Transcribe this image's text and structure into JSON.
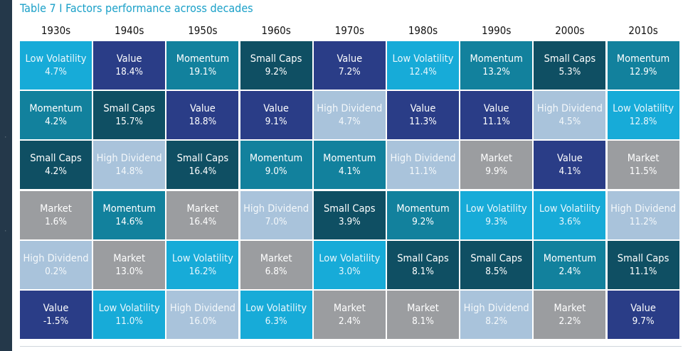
{
  "colors": {
    "Low Volatility": "#17abd8",
    "Value": "#2a3d87",
    "Momentum": "#12819d",
    "Small Caps": "#0f4f63",
    "High Dividend": "#a9c3db",
    "Market": "#9b9da0"
  },
  "text_colors": {
    "Low Volatility": "#e8f6fc",
    "Value": "#ffffff",
    "Momentum": "#ffffff",
    "Small Caps": "#ffffff",
    "High Dividend": "#f4f8fb",
    "Market": "#ffffff"
  },
  "chart_data": {
    "type": "table",
    "title": "Table 7 I Factors performance across decades",
    "columns": [
      {
        "decade": "1930s",
        "cells": [
          {
            "factor": "Low Volatility",
            "value": "4.7%"
          },
          {
            "factor": "Momentum",
            "value": "4.2%"
          },
          {
            "factor": "Small Caps",
            "value": "4.2%"
          },
          {
            "factor": "Market",
            "value": "1.6%"
          },
          {
            "factor": "High Dividend",
            "value": "0.2%"
          },
          {
            "factor": "Value",
            "value": "-1.5%"
          }
        ]
      },
      {
        "decade": "1940s",
        "cells": [
          {
            "factor": "Value",
            "value": "18.4%"
          },
          {
            "factor": "Small Caps",
            "value": "15.7%"
          },
          {
            "factor": "High Dividend",
            "value": "14.8%"
          },
          {
            "factor": "Momentum",
            "value": "14.6%"
          },
          {
            "factor": "Market",
            "value": "13.0%"
          },
          {
            "factor": "Low Volatility",
            "value": "11.0%"
          }
        ]
      },
      {
        "decade": "1950s",
        "cells": [
          {
            "factor": "Momentum",
            "value": "19.1%"
          },
          {
            "factor": "Value",
            "value": "18.8%"
          },
          {
            "factor": "Small Caps",
            "value": "16.4%"
          },
          {
            "factor": "Market",
            "value": "16.4%"
          },
          {
            "factor": "Low Volatility",
            "value": "16.2%"
          },
          {
            "factor": "High Dividend",
            "value": "16.0%"
          }
        ]
      },
      {
        "decade": "1960s",
        "cells": [
          {
            "factor": "Small Caps",
            "value": "9.2%"
          },
          {
            "factor": "Value",
            "value": "9.1%"
          },
          {
            "factor": "Momentum",
            "value": "9.0%"
          },
          {
            "factor": "High Dividend",
            "value": "7.0%"
          },
          {
            "factor": "Market",
            "value": "6.8%"
          },
          {
            "factor": "Low Volatility",
            "value": "6.3%"
          }
        ]
      },
      {
        "decade": "1970s",
        "cells": [
          {
            "factor": "Value",
            "value": "7.2%"
          },
          {
            "factor": "High Dividend",
            "value": "4.7%"
          },
          {
            "factor": "Momentum",
            "value": "4.1%"
          },
          {
            "factor": "Small Caps",
            "value": "3.9%"
          },
          {
            "factor": "Low Volatility",
            "value": "3.0%"
          },
          {
            "factor": "Market",
            "value": "2.4%"
          }
        ]
      },
      {
        "decade": "1980s",
        "cells": [
          {
            "factor": "Low Volatility",
            "value": "12.4%"
          },
          {
            "factor": "Value",
            "value": "11.3%"
          },
          {
            "factor": "High Dividend",
            "value": "11.1%"
          },
          {
            "factor": "Momentum",
            "value": "9.2%"
          },
          {
            "factor": "Small Caps",
            "value": "8.1%"
          },
          {
            "factor": "Market",
            "value": "8.1%"
          }
        ]
      },
      {
        "decade": "1990s",
        "cells": [
          {
            "factor": "Momentum",
            "value": "13.2%"
          },
          {
            "factor": "Value",
            "value": "11.1%"
          },
          {
            "factor": "Market",
            "value": "9.9%"
          },
          {
            "factor": "Low Volatility",
            "value": "9.3%"
          },
          {
            "factor": "Small Caps",
            "value": "8.5%"
          },
          {
            "factor": "High Dividend",
            "value": "8.2%"
          }
        ]
      },
      {
        "decade": "2000s",
        "cells": [
          {
            "factor": "Small Caps",
            "value": "5.3%"
          },
          {
            "factor": "High Dividend",
            "value": "4.5%"
          },
          {
            "factor": "Value",
            "value": "4.1%"
          },
          {
            "factor": "Low Volatility",
            "value": "3.6%"
          },
          {
            "factor": "Momentum",
            "value": "2.4%"
          },
          {
            "factor": "Market",
            "value": "2.2%"
          }
        ]
      },
      {
        "decade": "2010s",
        "cells": [
          {
            "factor": "Momentum",
            "value": "12.9%"
          },
          {
            "factor": "Low Volatility",
            "value": "12.8%"
          },
          {
            "factor": "Market",
            "value": "11.5%"
          },
          {
            "factor": "High Dividend",
            "value": "11.2%"
          },
          {
            "factor": "Small Caps",
            "value": "11.1%"
          },
          {
            "factor": "Value",
            "value": "9.7%"
          }
        ]
      }
    ]
  }
}
